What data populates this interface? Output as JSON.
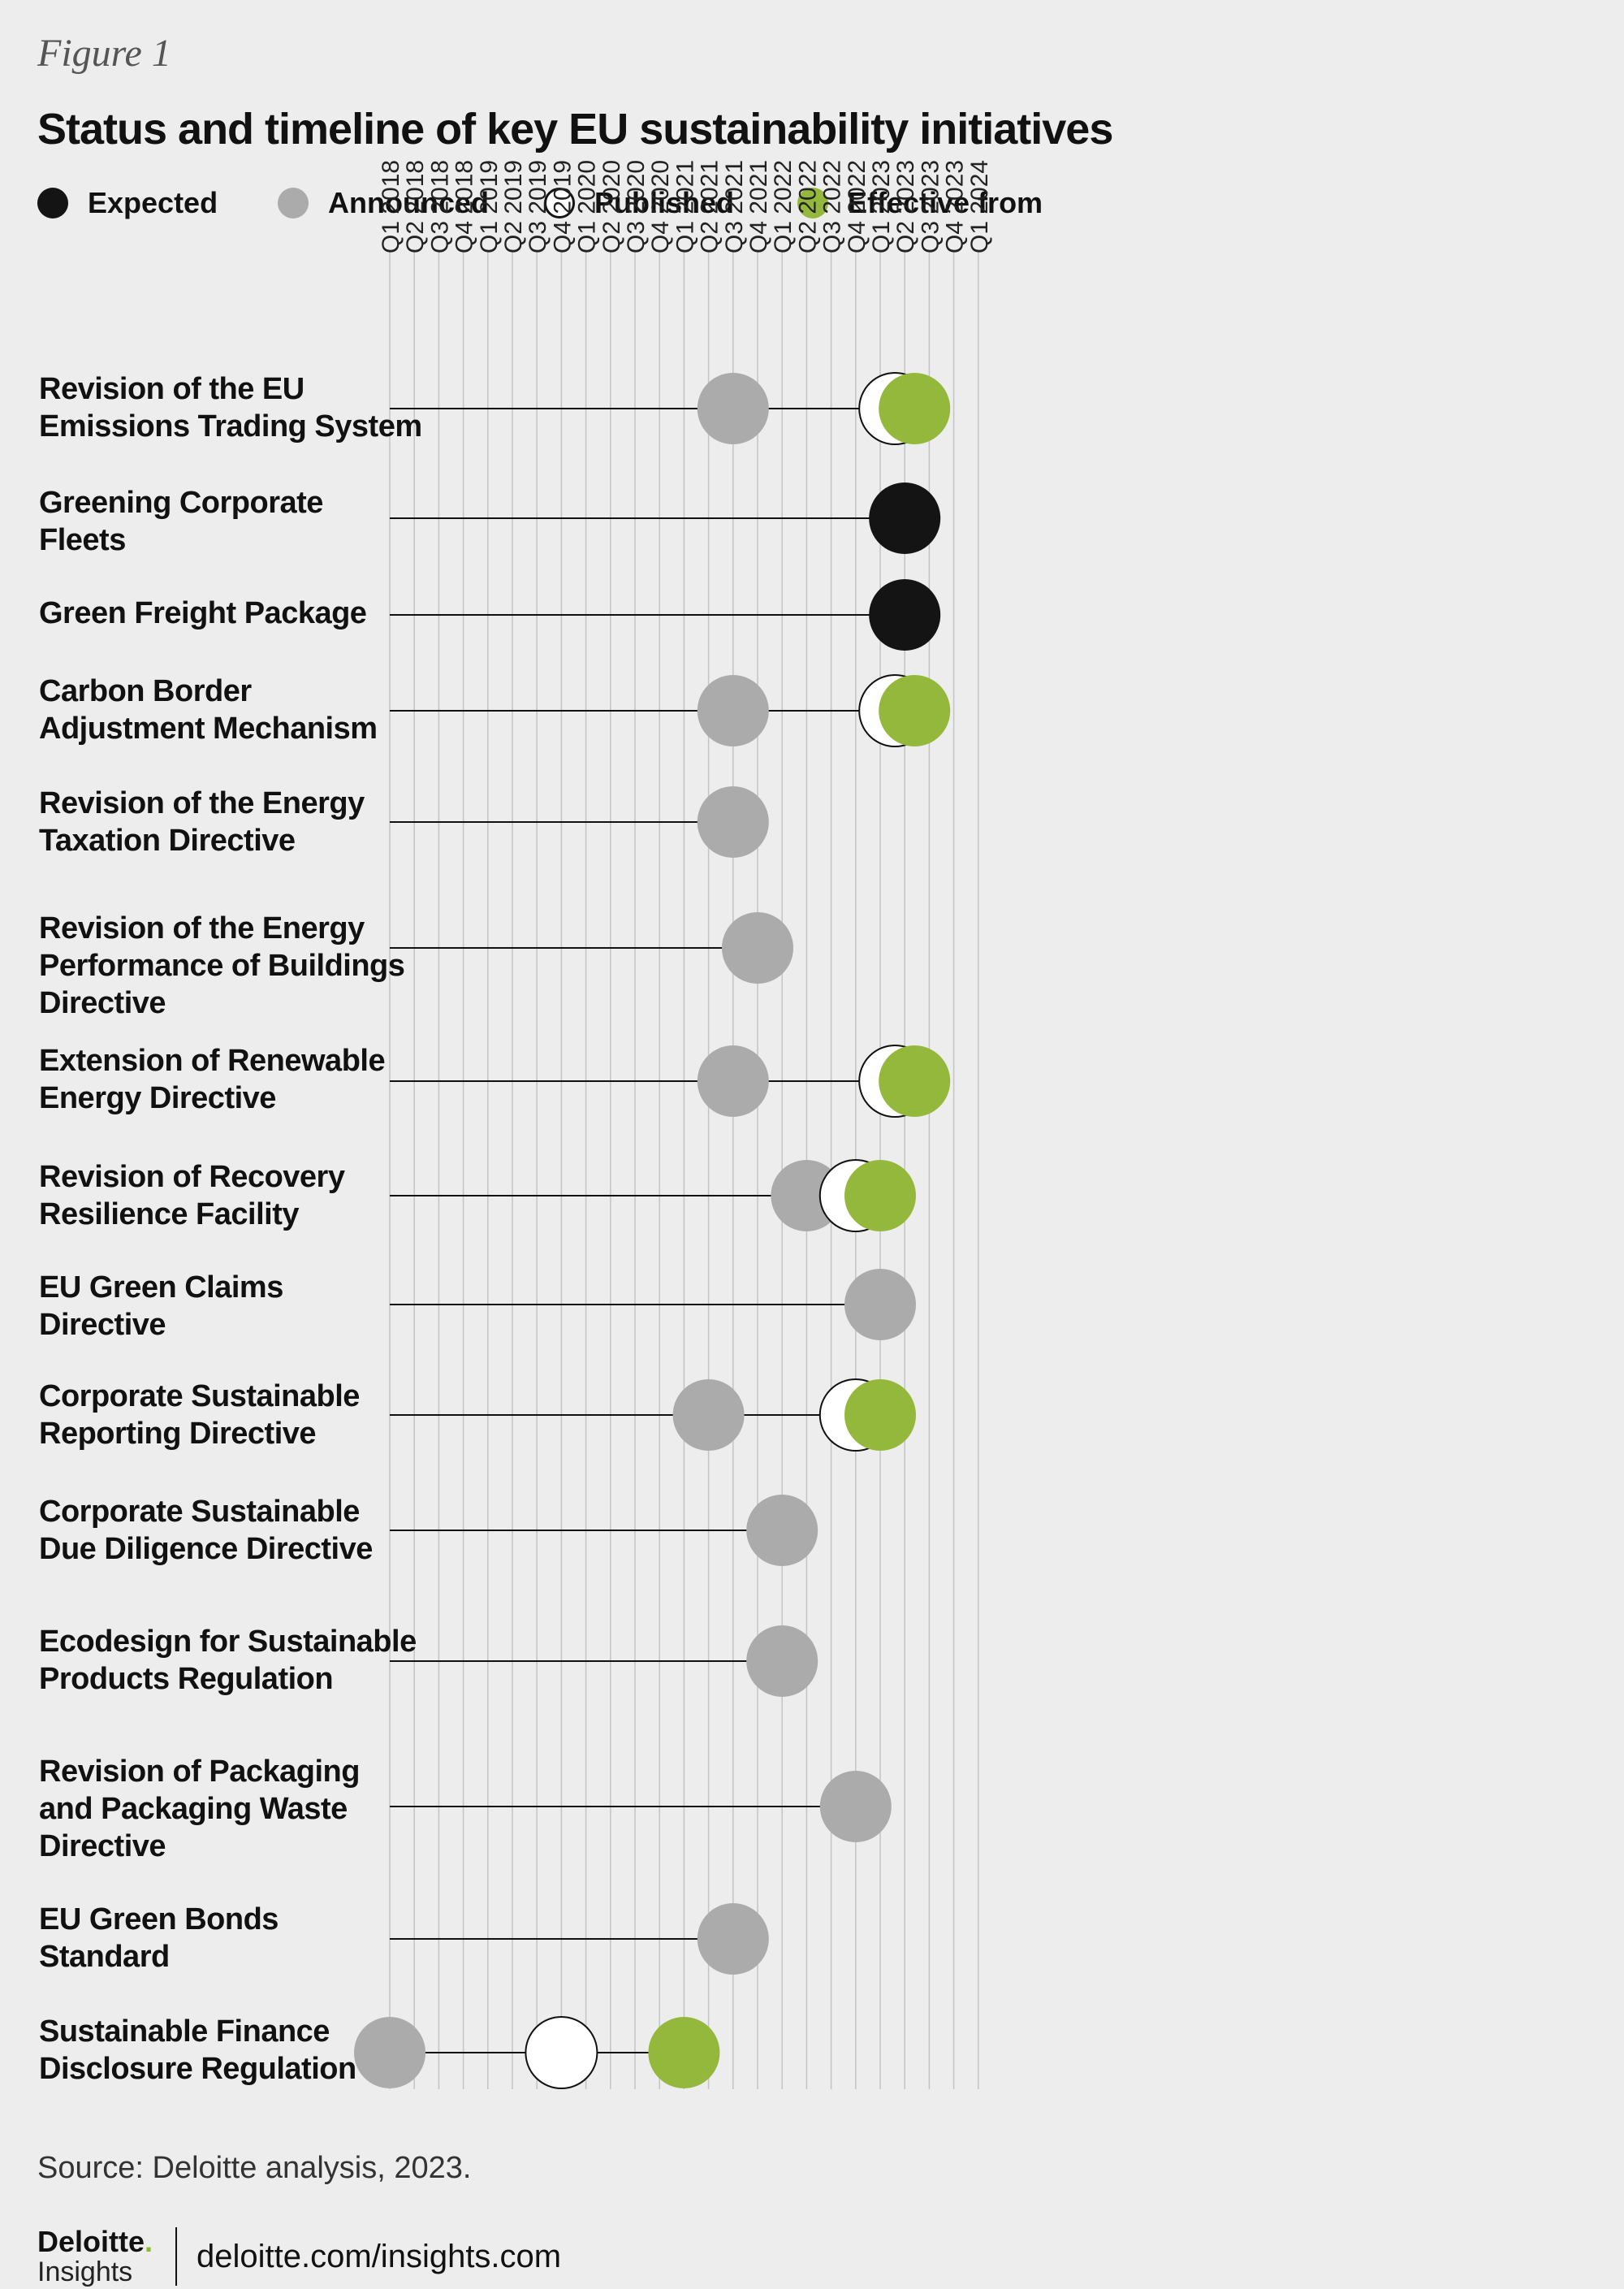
{
  "figure_label": "Figure 1",
  "legend": [
    {
      "label": "Expected",
      "color": "#141414",
      "fill": "#141414"
    },
    {
      "label": "Announced",
      "color": "#ababab",
      "fill": "#ababab"
    },
    {
      "label": "Published",
      "color": "#141414",
      "fill": "#ffffff"
    },
    {
      "label": "Effective from",
      "color": "#94b83c",
      "fill": "#94b83c"
    }
  ],
  "row_labels": [
    [
      "Revision of the EU",
      "Emissions Trading System"
    ],
    [
      "Greening Corporate",
      "Fleets"
    ],
    [
      "Green Freight Package"
    ],
    [
      "Carbon Border",
      "Adjustment Mechanism"
    ],
    [
      "Revision of the Energy",
      "Taxation Directive"
    ],
    [
      "Revision of the Energy",
      "Performance of Buildings",
      "Directive"
    ],
    [
      "Extension of Renewable",
      "Energy Directive"
    ],
    [
      "Revision of Recovery",
      "Resilience Facility"
    ],
    [
      "EU Green Claims",
      "Directive"
    ],
    [
      "Corporate Sustainable",
      "Reporting Directive"
    ],
    [
      "Corporate Sustainable",
      "Due Diligence Directive"
    ],
    [
      "Ecodesign for Sustainable",
      "Products Regulation"
    ],
    [
      "Revision of Packaging",
      "and Packaging Waste",
      "Directive"
    ],
    [
      "EU Green Bonds",
      "Standard"
    ],
    [
      "Sustainable Finance",
      "Disclosure Regulation"
    ]
  ],
  "chart_data": {
    "type": "timeline",
    "title": "Status and timeline of key EU sustainability initiatives",
    "x_axis": [
      "Q1 2018",
      "Q2 2018",
      "Q3 2018",
      "Q4 2018",
      "Q1 2019",
      "Q2 2019",
      "Q3 2019",
      "Q4 2019",
      "Q1 2020",
      "Q2 2020",
      "Q3 2020",
      "Q4 2020",
      "Q1 2021",
      "Q2 2021",
      "Q3 2021",
      "Q4 2021",
      "Q1 2022",
      "Q2 2022",
      "Q3 2022",
      "Q4 2022",
      "Q1 2023",
      "Q2 2023",
      "Q3 2023",
      "Q4 2023",
      "Q1 2024"
    ],
    "status_colors": {
      "Expected": "#141414",
      "Announced": "#ababab",
      "Published": "#ffffff",
      "Effective from": "#94b83c"
    },
    "initiatives": [
      {
        "name": "Revision of the EU Emissions Trading System",
        "events": [
          {
            "status": "Announced",
            "quarter": "Q3 2021"
          },
          {
            "status": "Published",
            "quarter": "Q2 2023"
          },
          {
            "status": "Effective from",
            "quarter": "Q2 2023"
          }
        ]
      },
      {
        "name": "Greening Corporate Fleets",
        "events": [
          {
            "status": "Expected",
            "quarter": "Q2 2023"
          }
        ]
      },
      {
        "name": "Green Freight Package",
        "events": [
          {
            "status": "Expected",
            "quarter": "Q2 2023"
          }
        ]
      },
      {
        "name": "Carbon Border Adjustment Mechanism",
        "events": [
          {
            "status": "Announced",
            "quarter": "Q3 2021"
          },
          {
            "status": "Published",
            "quarter": "Q2 2023"
          },
          {
            "status": "Effective from",
            "quarter": "Q2 2023"
          }
        ]
      },
      {
        "name": "Revision of the Energy Taxation Directive",
        "events": [
          {
            "status": "Announced",
            "quarter": "Q3 2021"
          }
        ]
      },
      {
        "name": "Revision of the Energy Performance of Buildings Directive",
        "events": [
          {
            "status": "Announced",
            "quarter": "Q4 2021"
          }
        ]
      },
      {
        "name": "Extension of Renewable Energy Directive",
        "events": [
          {
            "status": "Announced",
            "quarter": "Q3 2021"
          },
          {
            "status": "Published",
            "quarter": "Q2 2023"
          },
          {
            "status": "Effective from",
            "quarter": "Q2 2023"
          }
        ]
      },
      {
        "name": "Revision of Recovery Resilience Facility",
        "events": [
          {
            "status": "Announced",
            "quarter": "Q2 2022"
          },
          {
            "status": "Published",
            "quarter": "Q4 2022"
          },
          {
            "status": "Effective from",
            "quarter": "Q1 2023"
          }
        ]
      },
      {
        "name": "EU Green Claims Directive",
        "events": [
          {
            "status": "Announced",
            "quarter": "Q1 2023"
          }
        ]
      },
      {
        "name": "Corporate Sustainable Reporting Directive",
        "events": [
          {
            "status": "Announced",
            "quarter": "Q2 2021"
          },
          {
            "status": "Published",
            "quarter": "Q4 2022"
          },
          {
            "status": "Effective from",
            "quarter": "Q1 2023"
          }
        ]
      },
      {
        "name": "Corporate Sustainable Due Diligence Directive",
        "events": [
          {
            "status": "Announced",
            "quarter": "Q1 2022"
          }
        ]
      },
      {
        "name": "Ecodesign for Sustainable Products Regulation",
        "events": [
          {
            "status": "Announced",
            "quarter": "Q1 2022"
          }
        ]
      },
      {
        "name": "Revision of Packaging and Packaging Waste Directive",
        "events": [
          {
            "status": "Announced",
            "quarter": "Q4 2022"
          }
        ]
      },
      {
        "name": "EU Green Bonds Standard",
        "events": [
          {
            "status": "Announced",
            "quarter": "Q3 2021"
          }
        ]
      },
      {
        "name": "Sustainable Finance Disclosure Regulation",
        "events": [
          {
            "status": "Announced",
            "quarter": "Q1 2018"
          },
          {
            "status": "Published",
            "quarter": "Q4 2019"
          },
          {
            "status": "Effective from",
            "quarter": "Q1 2021"
          }
        ]
      }
    ]
  },
  "source": "Source: Deloitte analysis, 2023.",
  "brand": {
    "name": "Deloitte",
    "dot": ".",
    "sub": "Insights",
    "url": "deloitte.com/insights.com"
  }
}
